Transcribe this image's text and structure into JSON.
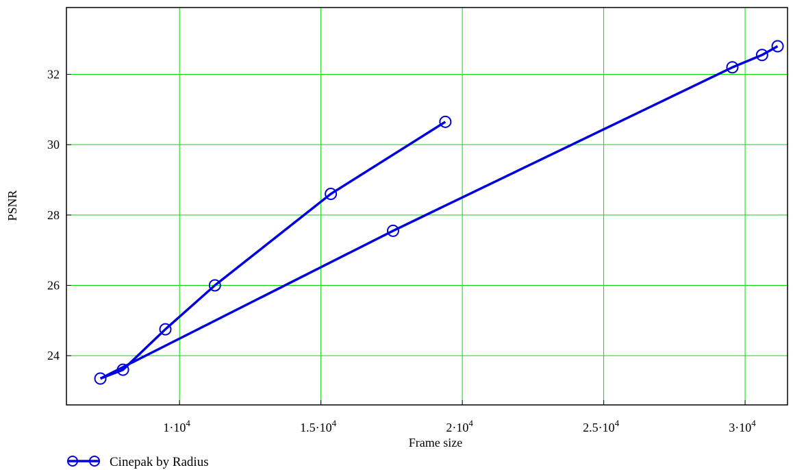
{
  "chart_data": {
    "type": "line",
    "xlabel": "Frame size",
    "ylabel": "PSNR",
    "xlim": [
      6000,
      31500
    ],
    "ylim": [
      22.6,
      33.9
    ],
    "x_ticks": [
      {
        "value": 10000,
        "mantissa": "1",
        "exponent": "4"
      },
      {
        "value": 15000,
        "mantissa": "1.5",
        "exponent": "4"
      },
      {
        "value": 20000,
        "mantissa": "2",
        "exponent": "4"
      },
      {
        "value": 25000,
        "mantissa": "2.5",
        "exponent": "4"
      },
      {
        "value": 30000,
        "mantissa": "3",
        "exponent": "4"
      }
    ],
    "y_ticks": [
      {
        "value": 24,
        "label": "24"
      },
      {
        "value": 26,
        "label": "26"
      },
      {
        "value": 28,
        "label": "28"
      },
      {
        "value": 30,
        "label": "30"
      },
      {
        "value": 32,
        "label": "32"
      }
    ],
    "grid": true,
    "grid_color": "#00dd00",
    "series_color": "#0000dd",
    "legend_position": "bottom-left",
    "series": [
      {
        "name": "Cinepak by Radius",
        "marker": "circle",
        "x": [
          7200,
          8000,
          9500,
          11250,
          15350,
          19400,
          17550,
          29550,
          30600,
          31150
        ],
        "y": [
          23.35,
          23.6,
          24.75,
          26.0,
          28.6,
          30.65,
          27.55,
          32.2,
          32.55,
          32.8
        ],
        "segments": [
          [
            0,
            1,
            2,
            3,
            4,
            5
          ],
          [
            0,
            6,
            7,
            8,
            9
          ]
        ]
      }
    ]
  }
}
